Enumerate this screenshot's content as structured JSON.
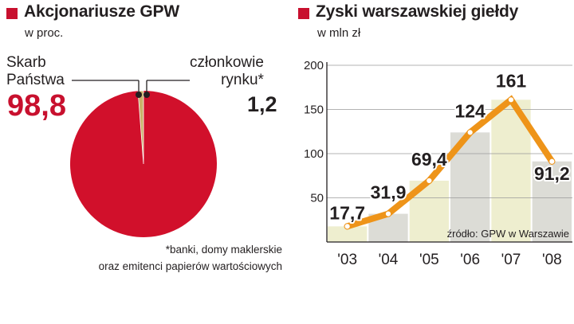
{
  "colors": {
    "brand_red": "#c8102e",
    "pie_red": "#d1102b",
    "pie_gold": "#c9b26a",
    "line_orange": "#ee9419",
    "band_yellow": "#eeeecf",
    "band_grey": "#dcdcd6",
    "grid": "#9a9a9a"
  },
  "chart_data": [
    {
      "type": "pie",
      "title": "Akcjonariusze GPW",
      "subtitle": "w proc.",
      "slices": [
        {
          "label": "Skarb\nPaństwa",
          "value": 98.8,
          "value_label": "98,8"
        },
        {
          "label": "członkowie\nrynku*",
          "value": 1.2,
          "value_label": "1,2"
        }
      ],
      "footnote": [
        "*banki, domy maklerskie",
        "oraz emitenci papierów wartościowych"
      ]
    },
    {
      "type": "line",
      "title": "Zyski warszawskiej giełdy",
      "subtitle": "w mln zł",
      "categories": [
        "'03",
        "'04",
        "'05",
        "'06",
        "'07",
        "'08"
      ],
      "series": [
        {
          "values": [
            17.7,
            31.9,
            69.4,
            124,
            161,
            91.2
          ]
        }
      ],
      "data_labels": [
        "17,7",
        "31,9",
        "69,4",
        "124",
        "161",
        "91,2"
      ],
      "yticks": [
        50,
        100,
        150,
        200
      ],
      "ylim": [
        0,
        200
      ],
      "grid": true,
      "source": "źródło: GPW w Warszawie"
    }
  ]
}
